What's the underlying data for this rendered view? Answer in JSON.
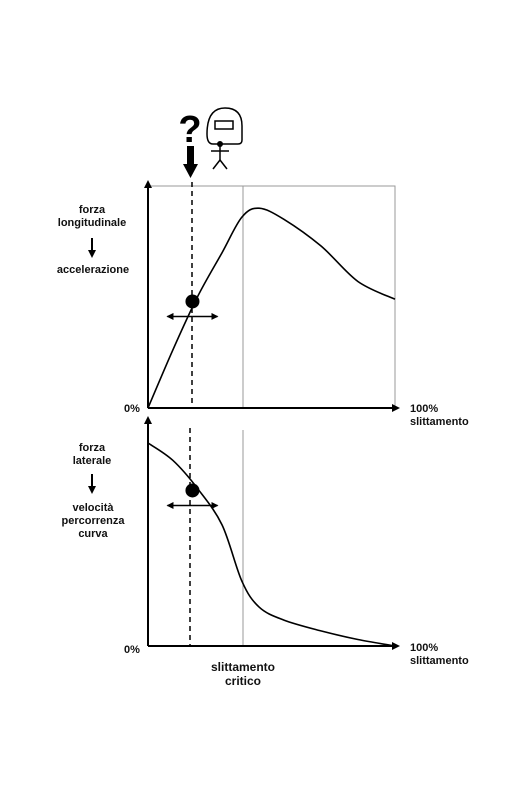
{
  "question_mark": "?",
  "helmet_visor": "",
  "top_chart": {
    "ylabel_line1": "forza",
    "ylabel_line2": "longitudinale",
    "ylabel_effect": "accelerazione",
    "origin_label": "0%",
    "x_end_label_line1": "100%",
    "x_end_label_line2": "slittamento"
  },
  "bottom_chart": {
    "ylabel_line1": "forza",
    "ylabel_line2": "laterale",
    "ylabel_effect_line1": "velocità",
    "ylabel_effect_line2": "percorrenza",
    "ylabel_effect_line3": "curva",
    "origin_label": "0%",
    "x_end_label_line1": "100%",
    "x_end_label_line2": "slittamento"
  },
  "critical_label_line1": "slittamento",
  "critical_label_line2": "critico",
  "chart_data": [
    {
      "type": "line",
      "description": "longitudinal force vs slip",
      "x": [
        0,
        10,
        20,
        30,
        38,
        45,
        55,
        70,
        85,
        100
      ],
      "y": [
        0,
        26,
        50,
        70,
        86,
        90,
        85,
        73,
        57,
        49
      ],
      "xlim": [
        0,
        100
      ],
      "ylim": [
        0,
        100
      ],
      "critical_slip": 38,
      "operating_point": [
        18,
        48
      ],
      "grid": false
    },
    {
      "type": "line",
      "description": "lateral force vs slip",
      "x": [
        0,
        10,
        20,
        30,
        38,
        45,
        55,
        70,
        85,
        100
      ],
      "y": [
        94,
        86,
        73,
        56,
        30,
        18,
        12,
        7,
        3,
        0
      ],
      "xlim": [
        0,
        100
      ],
      "ylim": [
        0,
        100
      ],
      "critical_slip": 38,
      "operating_point": [
        18,
        72
      ],
      "grid": false
    }
  ]
}
